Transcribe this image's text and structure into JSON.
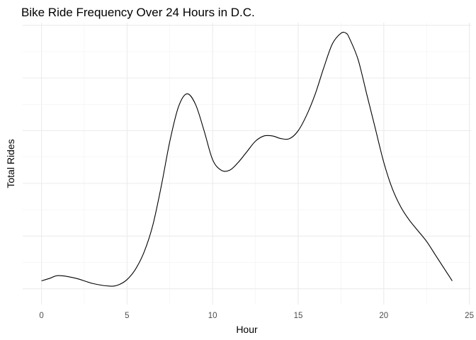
{
  "chart_data": {
    "type": "line",
    "title": "Bike Ride Frequency Over 24 Hours in D.C.",
    "xlabel": "Hour",
    "ylabel": "Total Rides",
    "xlim": [
      -1.1,
      25.1
    ],
    "ylim": [
      -0.6,
      10.1
    ],
    "x_ticks": [
      0,
      5,
      10,
      15,
      20,
      25
    ],
    "x_tick_labels": [
      "0",
      "5",
      "10",
      "15",
      "20",
      "25"
    ],
    "y_tick_labels_shown": false,
    "grid": true,
    "series": [
      {
        "x": [
          0,
          0.5,
          1,
          2,
          3,
          4,
          4.5,
          5,
          5.5,
          6,
          6.5,
          7,
          7.5,
          8,
          8.5,
          9,
          9.5,
          10,
          10.5,
          11,
          11.5,
          12,
          12.5,
          13,
          13.5,
          14,
          14.5,
          15,
          15.5,
          16,
          16.5,
          17,
          17.5,
          17.8,
          18,
          18.5,
          19,
          19.5,
          20,
          20.5,
          21,
          21.5,
          22,
          22.5,
          23,
          23.5,
          24
        ],
        "y": [
          0.3,
          0.4,
          0.5,
          0.4,
          0.2,
          0.1,
          0.15,
          0.35,
          0.75,
          1.4,
          2.4,
          3.9,
          5.6,
          6.9,
          7.4,
          7.0,
          6.0,
          4.9,
          4.5,
          4.5,
          4.8,
          5.2,
          5.6,
          5.8,
          5.8,
          5.7,
          5.7,
          6.0,
          6.6,
          7.4,
          8.4,
          9.3,
          9.7,
          9.7,
          9.5,
          8.7,
          7.4,
          6.1,
          4.8,
          3.8,
          3.1,
          2.6,
          2.2,
          1.8,
          1.3,
          0.8,
          0.3
        ]
      }
    ]
  }
}
